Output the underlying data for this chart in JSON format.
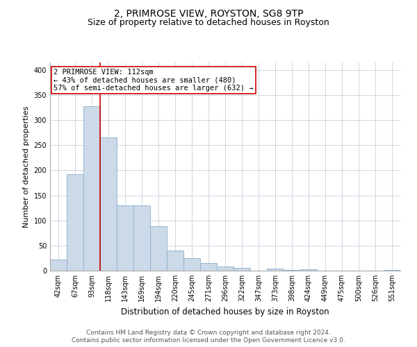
{
  "title": "2, PRIMROSE VIEW, ROYSTON, SG8 9TP",
  "subtitle": "Size of property relative to detached houses in Royston",
  "xlabel": "Distribution of detached houses by size in Royston",
  "ylabel": "Number of detached properties",
  "categories": [
    "42sqm",
    "67sqm",
    "93sqm",
    "118sqm",
    "143sqm",
    "169sqm",
    "194sqm",
    "220sqm",
    "245sqm",
    "271sqm",
    "296sqm",
    "322sqm",
    "347sqm",
    "373sqm",
    "398sqm",
    "424sqm",
    "449sqm",
    "475sqm",
    "500sqm",
    "526sqm",
    "551sqm"
  ],
  "values": [
    22,
    192,
    328,
    265,
    130,
    130,
    88,
    40,
    25,
    15,
    8,
    5,
    0,
    4,
    2,
    3,
    0,
    0,
    0,
    0,
    2
  ],
  "bar_color": "#ccd9e8",
  "bar_edge_color": "#8aaec8",
  "grid_color": "#c8d0dc",
  "vline_color": "#cc0000",
  "annotation_line1": "2 PRIMROSE VIEW: 112sqm",
  "annotation_line2": "← 43% of detached houses are smaller (480)",
  "annotation_line3": "57% of semi-detached houses are larger (632) →",
  "annotation_box_color": "#ffffff",
  "annotation_box_edge": "#cc0000",
  "ylim": [
    0,
    415
  ],
  "yticks": [
    0,
    50,
    100,
    150,
    200,
    250,
    300,
    350,
    400
  ],
  "footer1": "Contains HM Land Registry data © Crown copyright and database right 2024.",
  "footer2": "Contains public sector information licensed under the Open Government Licence v3.0.",
  "title_fontsize": 10,
  "subtitle_fontsize": 9,
  "tick_fontsize": 7,
  "ylabel_fontsize": 8,
  "xlabel_fontsize": 8.5,
  "footer_fontsize": 6.5,
  "annotation_fontsize": 7.5
}
